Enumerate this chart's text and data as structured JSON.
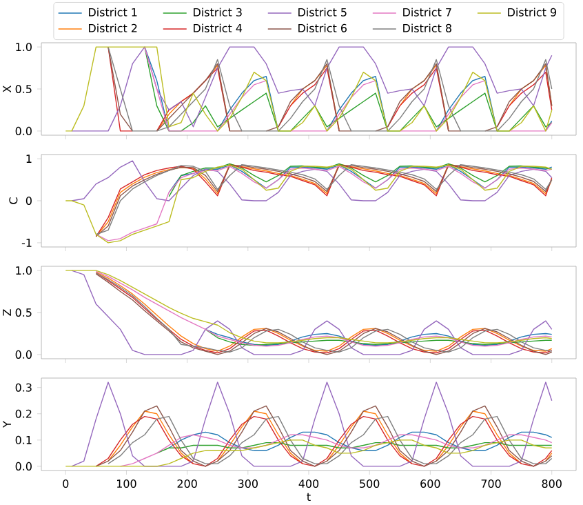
{
  "chart_data": [
    {
      "type": "line",
      "ylabel": "X",
      "legend": "top",
      "tick_labels": "y",
      "xlim": [
        -40,
        840
      ],
      "ylim": [
        -0.05,
        1.05
      ],
      "xticks": [
        0,
        100,
        200,
        300,
        400,
        500,
        600,
        700,
        800
      ],
      "yticks": [
        {
          "value": 0,
          "label": "0.0"
        },
        {
          "value": 0.5,
          "label": "0.5"
        },
        {
          "value": 1,
          "label": "1.0"
        }
      ],
      "x": [
        0,
        10,
        30,
        50,
        70,
        90,
        110,
        130,
        150,
        170,
        190,
        210,
        230,
        250,
        270,
        290,
        310,
        330,
        350,
        370,
        390,
        410,
        430,
        450,
        470,
        490,
        510,
        530,
        550,
        570,
        590,
        610,
        630,
        650,
        670,
        690,
        710,
        730,
        750,
        770,
        790,
        800
      ],
      "series": [
        {
          "name": "District 1",
          "color": "#1f77b4",
          "values": [
            null,
            null,
            null,
            null,
            null,
            null,
            null,
            1,
            0.6,
            0,
            null,
            null,
            null,
            0,
            0.25,
            0.45,
            0.6,
            0.65,
            0,
            null,
            null,
            null,
            0,
            0.25,
            0.45,
            0.6,
            0.65,
            0,
            null,
            null,
            null,
            0,
            0.25,
            0.45,
            0.6,
            0.65,
            0,
            null,
            null,
            null,
            0,
            0.12
          ]
        },
        {
          "name": "District 2",
          "color": "#ff7f0e",
          "values": [
            null,
            null,
            null,
            null,
            null,
            null,
            null,
            null,
            0,
            0.2,
            0.35,
            0.45,
            0.6,
            0.78,
            0.02,
            null,
            null,
            null,
            null,
            0.3,
            0.5,
            0.6,
            0.78,
            0.02,
            null,
            null,
            null,
            null,
            0.3,
            0.5,
            0.6,
            0.78,
            0.02,
            null,
            null,
            null,
            null,
            0.3,
            0.5,
            0.6,
            0.78,
            0.3
          ]
        },
        {
          "name": "District 3",
          "color": "#2ca02c",
          "values": [
            null,
            null,
            null,
            null,
            null,
            null,
            null,
            1,
            0.3,
            0,
            0,
            0.1,
            0.3,
            0.05,
            0.15,
            0.25,
            0.35,
            0.45,
            0,
            0,
            0.15,
            0.3,
            0.05,
            0.15,
            0.25,
            0.35,
            0.45,
            0,
            0,
            0.15,
            0.3,
            0.05,
            0.15,
            0.25,
            0.35,
            0.45,
            0,
            0,
            0.15,
            0.3,
            0.05,
            0.1
          ]
        },
        {
          "name": "District 4",
          "color": "#d62728",
          "values": [
            null,
            null,
            null,
            null,
            1,
            0,
            0,
            null,
            0,
            0.25,
            0.35,
            0.45,
            0.6,
            0.75,
            0,
            null,
            null,
            null,
            0.05,
            0.3,
            0.45,
            0.55,
            0.75,
            0,
            null,
            null,
            null,
            0.05,
            0.3,
            0.45,
            0.55,
            0.75,
            0,
            null,
            null,
            null,
            0.05,
            0.3,
            0.45,
            0.55,
            0.7,
            0.25
          ]
        },
        {
          "name": "District 5",
          "color": "#9467bd",
          "values": [
            null,
            0,
            0,
            0,
            0,
            0.3,
            0.8,
            1,
            0.5,
            0.25,
            0.35,
            0.05,
            0.4,
            0.75,
            1,
            1,
            1,
            0.8,
            0.45,
            0.48,
            0.5,
            0.3,
            0.75,
            1,
            1,
            1,
            0.8,
            0.45,
            0.48,
            0.5,
            0.3,
            0.75,
            1,
            1,
            1,
            0.8,
            0.45,
            0.48,
            0.5,
            0.3,
            0.75,
            0.9
          ]
        },
        {
          "name": "District 6",
          "color": "#8c564b",
          "values": [
            null,
            null,
            null,
            null,
            1,
            0.2,
            0,
            null,
            0,
            0.15,
            0.3,
            0.45,
            0.6,
            0.8,
            0,
            0,
            null,
            0,
            0.05,
            0.35,
            0.5,
            0.6,
            0.8,
            0,
            0,
            null,
            0,
            0.05,
            0.35,
            0.5,
            0.6,
            0.8,
            0,
            0,
            null,
            0,
            0.05,
            0.35,
            0.5,
            0.6,
            0.8,
            0.3
          ]
        },
        {
          "name": "District 7",
          "color": "#e377c2",
          "values": [
            null,
            null,
            null,
            null,
            null,
            null,
            null,
            1,
            0.5,
            0,
            0,
            0,
            0,
            0,
            0.2,
            0.4,
            0.55,
            0.6,
            null,
            0,
            0,
            0,
            0,
            0.2,
            0.4,
            0.55,
            0.6,
            null,
            0,
            0,
            0,
            0,
            0.2,
            0.4,
            0.55,
            0.6,
            null,
            0,
            0,
            0,
            0,
            0.1
          ]
        },
        {
          "name": "District 8",
          "color": "#7f7f7f",
          "values": [
            null,
            null,
            null,
            null,
            1,
            0.5,
            0,
            0,
            0,
            0.05,
            0.2,
            0.35,
            0.5,
            0.85,
            0.3,
            0,
            0,
            0,
            0,
            0.15,
            0.35,
            0.5,
            0.85,
            0.3,
            0,
            0,
            0,
            0,
            0.15,
            0.35,
            0.5,
            0.85,
            0.3,
            0,
            0,
            0,
            0,
            0.15,
            0.35,
            0.5,
            0.85,
            0.5
          ]
        },
        {
          "name": "District 9",
          "color": "#bcbd22",
          "values": [
            0,
            0,
            0.3,
            1,
            1,
            1,
            1,
            1,
            1,
            0.05,
            0.1,
            0.45,
            0.2,
            0,
            0.15,
            0.4,
            0.7,
            0.6,
            0,
            0,
            0.1,
            0.3,
            0,
            0.15,
            0.4,
            0.7,
            0.6,
            0,
            0,
            0.1,
            0.3,
            0,
            0.15,
            0.4,
            0.7,
            0.6,
            0,
            0,
            0.1,
            0.3,
            0,
            0.25
          ]
        }
      ]
    },
    {
      "type": "line",
      "ylabel": "C",
      "tick_labels": "y",
      "xlim": [
        -40,
        840
      ],
      "ylim": [
        -1.1,
        1.1
      ],
      "xticks": [
        0,
        100,
        200,
        300,
        400,
        500,
        600,
        700,
        800
      ],
      "yticks": [
        -1,
        0,
        1
      ],
      "x": [
        0,
        10,
        30,
        50,
        70,
        90,
        110,
        130,
        150,
        170,
        190,
        210,
        230,
        250,
        270,
        290,
        310,
        330,
        350,
        370,
        390,
        410,
        430,
        450,
        470,
        490,
        510,
        530,
        550,
        570,
        590,
        610,
        630,
        650,
        670,
        690,
        710,
        730,
        750,
        770,
        790,
        800
      ],
      "series": [
        {
          "color": "#1f77b4",
          "values": [
            null,
            null,
            null,
            null,
            null,
            null,
            null,
            null,
            null,
            0.2,
            0.6,
            0.65,
            0.75,
            0.75,
            0.85,
            0.7,
            0.5,
            0.3,
            0.5,
            0.8,
            0.8,
            0.78,
            0.75,
            0.85,
            0.7,
            0.5,
            0.3,
            0.5,
            0.8,
            0.8,
            0.78,
            0.75,
            0.85,
            0.7,
            0.5,
            0.3,
            0.5,
            0.8,
            0.8,
            0.78,
            0.75,
            0.8
          ]
        },
        {
          "color": "#ff7f0e",
          "values": [
            null,
            null,
            null,
            -0.85,
            -0.5,
            0.2,
            0.4,
            0.56,
            0.67,
            0.74,
            0.79,
            0.77,
            0.52,
            0.17,
            0.87,
            0.81,
            0.76,
            0.71,
            0.65,
            0.6,
            0.51,
            0.41,
            0.17,
            0.87,
            0.81,
            0.76,
            0.71,
            0.65,
            0.6,
            0.51,
            0.41,
            0.17,
            0.87,
            0.81,
            0.76,
            0.71,
            0.65,
            0.6,
            0.51,
            0.41,
            0.17,
            0.5
          ]
        },
        {
          "color": "#2ca02c",
          "values": [
            null,
            null,
            null,
            null,
            null,
            null,
            null,
            null,
            null,
            0.1,
            0.6,
            0.7,
            0.78,
            0.78,
            0.88,
            0.78,
            0.6,
            0.45,
            0.6,
            0.82,
            0.83,
            0.8,
            0.78,
            0.88,
            0.78,
            0.6,
            0.45,
            0.6,
            0.82,
            0.83,
            0.8,
            0.78,
            0.88,
            0.78,
            0.6,
            0.45,
            0.6,
            0.82,
            0.83,
            0.8,
            0.78,
            0.75
          ]
        },
        {
          "color": "#d62728",
          "values": [
            null,
            null,
            null,
            -0.85,
            -0.4,
            0.28,
            0.45,
            0.62,
            0.72,
            0.78,
            0.82,
            0.75,
            0.45,
            0.12,
            0.85,
            0.8,
            0.72,
            0.68,
            0.62,
            0.58,
            0.48,
            0.38,
            0.12,
            0.85,
            0.8,
            0.72,
            0.68,
            0.62,
            0.58,
            0.48,
            0.38,
            0.12,
            0.85,
            0.8,
            0.72,
            0.68,
            0.62,
            0.58,
            0.48,
            0.38,
            0.12,
            0.55
          ]
        },
        {
          "color": "#9467bd",
          "values": [
            null,
            0,
            0.05,
            0.4,
            0.55,
            0.8,
            0.95,
            0.45,
            0.05,
            0,
            0.3,
            0.6,
            0.75,
            0.7,
            0.4,
            0.02,
            0,
            0,
            0.2,
            0.6,
            0.7,
            0.75,
            0.7,
            0.4,
            0.02,
            0,
            0,
            0.2,
            0.6,
            0.7,
            0.75,
            0.7,
            0.4,
            0.02,
            0,
            0,
            0.2,
            0.6,
            0.7,
            0.75,
            0.7,
            0.55
          ]
        },
        {
          "color": "#8c564b",
          "values": [
            null,
            null,
            null,
            -0.85,
            -0.6,
            0.12,
            0.35,
            0.5,
            0.63,
            0.72,
            0.8,
            0.79,
            0.6,
            0.22,
            0.83,
            0.84,
            0.79,
            0.75,
            0.7,
            0.64,
            0.56,
            0.46,
            0.22,
            0.83,
            0.84,
            0.79,
            0.75,
            0.7,
            0.64,
            0.56,
            0.46,
            0.22,
            0.83,
            0.84,
            0.79,
            0.75,
            0.7,
            0.64,
            0.56,
            0.46,
            0.22,
            0.5
          ]
        },
        {
          "color": "#e377c2",
          "values": [
            null,
            null,
            null,
            -0.8,
            -0.95,
            -0.9,
            -0.75,
            -0.65,
            -0.55,
            0.2,
            0.55,
            0.65,
            0.72,
            0.72,
            0.82,
            0.65,
            0.45,
            0.3,
            0.5,
            0.75,
            0.78,
            0.75,
            0.72,
            0.82,
            0.65,
            0.45,
            0.3,
            0.5,
            0.75,
            0.78,
            0.75,
            0.72,
            0.82,
            0.65,
            0.45,
            0.3,
            0.5,
            0.75,
            0.78,
            0.75,
            0.72,
            0.75
          ]
        },
        {
          "color": "#7f7f7f",
          "values": [
            null,
            null,
            null,
            -0.8,
            -0.7,
            0,
            0.28,
            0.45,
            0.6,
            0.72,
            0.84,
            0.82,
            0.7,
            0.27,
            0.6,
            0.86,
            0.82,
            0.78,
            0.73,
            0.68,
            0.62,
            0.52,
            0.27,
            0.6,
            0.86,
            0.82,
            0.78,
            0.73,
            0.68,
            0.62,
            0.52,
            0.27,
            0.6,
            0.86,
            0.82,
            0.78,
            0.73,
            0.68,
            0.62,
            0.52,
            0.27,
            0.5
          ]
        },
        {
          "color": "#bcbd22",
          "values": [
            0,
            0,
            -0.1,
            -0.8,
            -1,
            -0.95,
            -0.8,
            -0.7,
            -0.6,
            -0.5,
            0.5,
            0.55,
            0.7,
            0.8,
            0.85,
            0.75,
            0.5,
            0.25,
            0.3,
            0.7,
            0.82,
            0.82,
            0.8,
            0.85,
            0.75,
            0.5,
            0.25,
            0.3,
            0.7,
            0.82,
            0.82,
            0.8,
            0.85,
            0.75,
            0.5,
            0.25,
            0.3,
            0.7,
            0.82,
            0.82,
            0.8,
            0.75
          ]
        }
      ]
    },
    {
      "type": "line",
      "ylabel": "Z",
      "tick_labels": "y",
      "xlim": [
        -40,
        840
      ],
      "ylim": [
        -0.05,
        1.05
      ],
      "xticks": [
        0,
        100,
        200,
        300,
        400,
        500,
        600,
        700,
        800
      ],
      "yticks": [
        {
          "value": 0,
          "label": "0.0"
        },
        {
          "value": 0.5,
          "label": "0.5"
        },
        {
          "value": 1,
          "label": "1.0"
        }
      ],
      "x": [
        0,
        10,
        30,
        50,
        70,
        90,
        110,
        130,
        150,
        170,
        190,
        210,
        230,
        250,
        270,
        290,
        310,
        330,
        350,
        370,
        390,
        410,
        430,
        450,
        470,
        490,
        510,
        530,
        550,
        570,
        590,
        610,
        630,
        650,
        670,
        690,
        710,
        730,
        750,
        770,
        790,
        800
      ],
      "series": [
        {
          "color": "#1f77b4",
          "values": [
            null,
            null,
            null,
            null,
            null,
            null,
            null,
            null,
            null,
            null,
            null,
            null,
            0.3,
            0.24,
            0.2,
            0.15,
            0.12,
            0.11,
            0.12,
            0.16,
            0.21,
            0.24,
            0.25,
            0.22,
            0.16,
            0.12,
            0.11,
            0.12,
            0.16,
            0.21,
            0.24,
            0.25,
            0.22,
            0.16,
            0.12,
            0.11,
            0.12,
            0.16,
            0.21,
            0.24,
            0.25,
            0.24
          ]
        },
        {
          "color": "#ff7f0e",
          "values": [
            null,
            null,
            null,
            0.98,
            0.91,
            0.82,
            0.72,
            0.6,
            0.47,
            0.34,
            0.22,
            0.13,
            0.07,
            0.04,
            0.1,
            0.21,
            0.3,
            0.31,
            0.25,
            0.17,
            0.1,
            0.05,
            0.04,
            0.1,
            0.21,
            0.3,
            0.31,
            0.25,
            0.17,
            0.1,
            0.05,
            0.04,
            0.1,
            0.21,
            0.3,
            0.31,
            0.25,
            0.17,
            0.1,
            0.05,
            0.04,
            0.07
          ]
        },
        {
          "color": "#2ca02c",
          "values": [
            null,
            null,
            null,
            null,
            null,
            null,
            null,
            null,
            null,
            null,
            null,
            null,
            0.3,
            0.2,
            0.15,
            0.12,
            0.11,
            0.12,
            0.13,
            0.14,
            0.15,
            0.16,
            0.17,
            0.17,
            0.15,
            0.13,
            0.12,
            0.13,
            0.14,
            0.15,
            0.16,
            0.17,
            0.17,
            0.15,
            0.13,
            0.12,
            0.13,
            0.14,
            0.15,
            0.16,
            0.17,
            0.17
          ]
        },
        {
          "color": "#d62728",
          "values": [
            null,
            null,
            null,
            0.97,
            0.88,
            0.78,
            0.68,
            0.55,
            0.42,
            0.3,
            0.18,
            0.1,
            0.05,
            0.02,
            0.07,
            0.18,
            0.28,
            0.29,
            0.22,
            0.14,
            0.07,
            0.03,
            0.02,
            0.07,
            0.18,
            0.28,
            0.29,
            0.22,
            0.14,
            0.07,
            0.03,
            0.02,
            0.07,
            0.18,
            0.28,
            0.29,
            0.22,
            0.14,
            0.07,
            0.03,
            0.02,
            0.05
          ]
        },
        {
          "color": "#9467bd",
          "values": [
            null,
            1,
            0.95,
            0.6,
            0.45,
            0.3,
            0.05,
            0,
            0,
            0,
            0,
            0.05,
            0.3,
            0.4,
            0.3,
            0.08,
            0,
            0,
            0,
            0,
            0.05,
            0.3,
            0.4,
            0.3,
            0.08,
            0,
            0,
            0,
            0,
            0.05,
            0.3,
            0.4,
            0.3,
            0.08,
            0,
            0,
            0,
            0,
            0.05,
            0.3,
            0.4,
            0.3
          ]
        },
        {
          "color": "#8c564b",
          "values": [
            null,
            null,
            null,
            0.96,
            0.86,
            0.75,
            0.65,
            0.52,
            0.4,
            0.28,
            0.15,
            0.08,
            0.04,
            0,
            0.04,
            0.14,
            0.25,
            0.31,
            0.27,
            0.19,
            0.11,
            0.04,
            0,
            0.04,
            0.14,
            0.25,
            0.31,
            0.27,
            0.19,
            0.11,
            0.04,
            0,
            0.04,
            0.14,
            0.25,
            0.31,
            0.27,
            0.19,
            0.11,
            0.04,
            0,
            0.03
          ]
        },
        {
          "color": "#e377c2",
          "values": [
            null,
            null,
            null,
            0.99,
            0.93,
            0.85,
            0.77,
            0.68,
            0.6,
            0.52,
            0.44,
            0.37,
            0.3,
            0.22,
            0.18,
            0.14,
            0.11,
            0.1,
            0.11,
            0.14,
            0.18,
            0.21,
            0.22,
            0.2,
            0.15,
            0.11,
            0.1,
            0.11,
            0.14,
            0.18,
            0.21,
            0.22,
            0.2,
            0.15,
            0.11,
            0.1,
            0.11,
            0.14,
            0.18,
            0.21,
            0.22,
            0.21
          ]
        },
        {
          "color": "#7f7f7f",
          "values": [
            null,
            null,
            null,
            0.97,
            0.89,
            0.8,
            0.7,
            0.57,
            0.43,
            0.3,
            0.12,
            0.1,
            0.08,
            0.05,
            0.03,
            0.08,
            0.2,
            0.28,
            0.3,
            0.24,
            0.15,
            0.08,
            0.05,
            0.03,
            0.08,
            0.2,
            0.28,
            0.3,
            0.24,
            0.15,
            0.08,
            0.05,
            0.03,
            0.08,
            0.2,
            0.28,
            0.3,
            0.24,
            0.15,
            0.08,
            0.05,
            0.04
          ]
        },
        {
          "color": "#bcbd22",
          "values": [
            1,
            1,
            1,
            1,
            0.95,
            0.88,
            0.8,
            0.72,
            0.64,
            0.56,
            0.49,
            0.43,
            0.39,
            0.35,
            0.26,
            0.2,
            0.16,
            0.14,
            0.14,
            0.15,
            0.17,
            0.19,
            0.2,
            0.2,
            0.18,
            0.16,
            0.14,
            0.14,
            0.15,
            0.17,
            0.19,
            0.2,
            0.2,
            0.18,
            0.16,
            0.14,
            0.14,
            0.15,
            0.17,
            0.19,
            0.2,
            0.19
          ]
        }
      ]
    },
    {
      "type": "line",
      "ylabel": "Y",
      "xlabel": "t",
      "xlim": [
        -40,
        840
      ],
      "ylim": [
        -0.016,
        0.336
      ],
      "xticks": [
        0,
        100,
        200,
        300,
        400,
        500,
        600,
        700,
        800
      ],
      "yticks": [
        {
          "value": 0,
          "label": "0.0"
        },
        {
          "value": 0.1,
          "label": "0.1"
        },
        {
          "value": 0.2,
          "label": "0.2"
        },
        {
          "value": 0.3,
          "label": "0.3"
        }
      ],
      "x": [
        0,
        10,
        30,
        50,
        70,
        90,
        110,
        130,
        150,
        170,
        190,
        210,
        230,
        250,
        270,
        290,
        310,
        330,
        350,
        370,
        390,
        410,
        430,
        450,
        470,
        490,
        510,
        530,
        550,
        570,
        590,
        610,
        630,
        650,
        670,
        690,
        710,
        730,
        750,
        770,
        790,
        800
      ],
      "series": [
        {
          "color": "#1f77b4",
          "values": [
            null,
            null,
            null,
            null,
            null,
            null,
            null,
            null,
            null,
            0.07,
            0.1,
            0.12,
            0.13,
            0.12,
            0.09,
            0.07,
            0.06,
            0.06,
            0.08,
            0.11,
            0.13,
            0.13,
            0.12,
            0.09,
            0.07,
            0.06,
            0.06,
            0.08,
            0.11,
            0.13,
            0.13,
            0.12,
            0.09,
            0.07,
            0.06,
            0.06,
            0.08,
            0.11,
            0.13,
            0.13,
            0.12,
            0.11
          ]
        },
        {
          "color": "#ff7f0e",
          "values": [
            null,
            null,
            null,
            null,
            0.02,
            0.08,
            0.15,
            0.21,
            0.2,
            0.12,
            0.05,
            0.01,
            null,
            0.02,
            0.08,
            0.15,
            0.21,
            0.2,
            0.12,
            0.05,
            0.01,
            null,
            0.02,
            0.08,
            0.15,
            0.21,
            0.2,
            0.12,
            0.05,
            0.01,
            null,
            0.02,
            0.08,
            0.15,
            0.21,
            0.2,
            0.12,
            0.05,
            0.01,
            null,
            0.02,
            0.05
          ]
        },
        {
          "color": "#2ca02c",
          "values": [
            null,
            null,
            null,
            null,
            null,
            null,
            null,
            null,
            0.05,
            0.07,
            0.07,
            0.08,
            0.08,
            0.08,
            0.07,
            0.07,
            0.08,
            0.09,
            0.09,
            0.08,
            0.08,
            0.08,
            0.08,
            0.07,
            0.07,
            0.08,
            0.09,
            0.09,
            0.08,
            0.08,
            0.08,
            0.08,
            0.07,
            0.07,
            0.08,
            0.09,
            0.09,
            0.08,
            0.08,
            0.08,
            0.08,
            0.08
          ]
        },
        {
          "color": "#d62728",
          "values": [
            null,
            null,
            null,
            0,
            0.03,
            0.1,
            0.16,
            0.19,
            0.18,
            0.1,
            0.04,
            0.01,
            0,
            0.03,
            0.1,
            0.16,
            0.19,
            0.18,
            0.1,
            0.04,
            0.01,
            0,
            0.03,
            0.1,
            0.16,
            0.19,
            0.18,
            0.1,
            0.04,
            0.01,
            0,
            0.03,
            0.1,
            0.16,
            0.19,
            0.18,
            0.1,
            0.04,
            0.01,
            0,
            0.03,
            0.06
          ]
        },
        {
          "color": "#9467bd",
          "values": [
            null,
            0,
            0.02,
            0.18,
            0.32,
            0.2,
            0.04,
            0,
            0,
            0,
            0,
            0.02,
            0.18,
            0.32,
            0.2,
            0.04,
            0,
            0,
            0,
            0,
            0.02,
            0.18,
            0.32,
            0.2,
            0.04,
            0,
            0,
            0,
            0,
            0.02,
            0.18,
            0.32,
            0.2,
            0.04,
            0,
            0,
            0,
            0,
            0.02,
            0.18,
            0.32,
            0.25
          ]
        },
        {
          "color": "#8c564b",
          "values": [
            null,
            null,
            null,
            0,
            0.02,
            0.06,
            0.13,
            0.21,
            0.23,
            0.15,
            0.06,
            0.02,
            0,
            0.02,
            0.06,
            0.13,
            0.21,
            0.23,
            0.15,
            0.06,
            0.02,
            0,
            0.02,
            0.06,
            0.13,
            0.21,
            0.23,
            0.15,
            0.06,
            0.02,
            0,
            0.02,
            0.06,
            0.13,
            0.21,
            0.23,
            0.15,
            0.06,
            0.02,
            0,
            0.02,
            0.04
          ]
        },
        {
          "color": "#e377c2",
          "values": [
            null,
            null,
            null,
            null,
            null,
            0,
            0.01,
            0.03,
            0.05,
            0.08,
            0.11,
            0.12,
            0.11,
            0.1,
            0.08,
            0.07,
            0.07,
            0.08,
            0.1,
            0.12,
            0.12,
            0.11,
            0.1,
            0.08,
            0.07,
            0.07,
            0.08,
            0.1,
            0.12,
            0.12,
            0.11,
            0.1,
            0.08,
            0.07,
            0.07,
            0.08,
            0.1,
            0.12,
            0.12,
            0.11,
            0.1,
            0.09
          ]
        },
        {
          "color": "#7f7f7f",
          "values": [
            null,
            null,
            null,
            null,
            0.01,
            0.04,
            0.09,
            0.12,
            0.18,
            0.19,
            0.1,
            0.03,
            0.01,
            0.01,
            0.04,
            0.09,
            0.12,
            0.18,
            0.19,
            0.1,
            0.03,
            0.01,
            0.01,
            0.04,
            0.09,
            0.12,
            0.18,
            0.19,
            0.1,
            0.03,
            0.01,
            0.01,
            0.04,
            0.09,
            0.12,
            0.18,
            0.19,
            0.1,
            0.03,
            0.01,
            0.01,
            0.03
          ]
        },
        {
          "color": "#bcbd22",
          "values": [
            0,
            0,
            0,
            0,
            0,
            0,
            0,
            0,
            0,
            0.01,
            0.03,
            0.05,
            0.06,
            0.06,
            0.06,
            0.06,
            0.07,
            0.08,
            0.09,
            0.1,
            0.1,
            0.08,
            0.07,
            0.05,
            0.05,
            0.06,
            0.08,
            0.09,
            0.1,
            0.1,
            0.08,
            0.07,
            0.05,
            0.05,
            0.06,
            0.08,
            0.09,
            0.1,
            0.1,
            0.08,
            0.07,
            0.07
          ]
        }
      ]
    }
  ]
}
